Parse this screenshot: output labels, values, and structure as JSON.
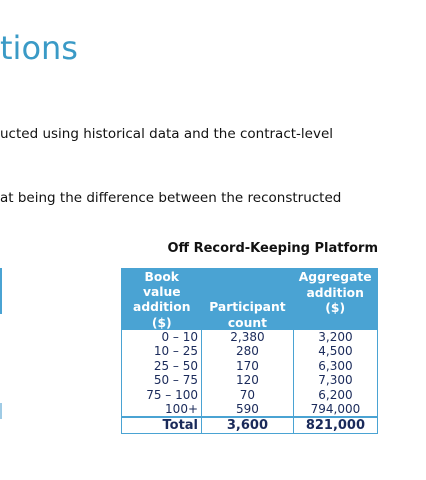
{
  "page": {
    "heading": "tions",
    "paragraph_1": "ucted using historical data and the contract-level",
    "paragraph_2": "at being the difference between the reconstructed"
  },
  "table": {
    "title": "Off Record-Keeping Platform",
    "headers": {
      "col1_line1": "Book value",
      "col1_line2": "addition",
      "col1_line3": "($)",
      "col2_line1": "Participant",
      "col2_line2": "count",
      "col3_line1": "Aggregate",
      "col3_line2": "addition",
      "col3_line3": "($)"
    },
    "rows": [
      {
        "range": "0 – 10",
        "count": "2,380",
        "amount": "3,200"
      },
      {
        "range": "10 – 25",
        "count": "280",
        "amount": "4,500"
      },
      {
        "range": "25 – 50",
        "count": "170",
        "amount": "6,300"
      },
      {
        "range": "50 – 75",
        "count": "120",
        "amount": "7,300"
      },
      {
        "range": "75 – 100",
        "count": "70",
        "amount": "6,200"
      },
      {
        "range": "100+",
        "count": "590",
        "amount": "794,000"
      }
    ],
    "total": {
      "label": "Total",
      "count": "3,600",
      "amount": "821,000"
    }
  },
  "colors": {
    "accent": "#3a9ac6",
    "header_bg": "#4aa3d3",
    "text": "#1a2a5a"
  }
}
